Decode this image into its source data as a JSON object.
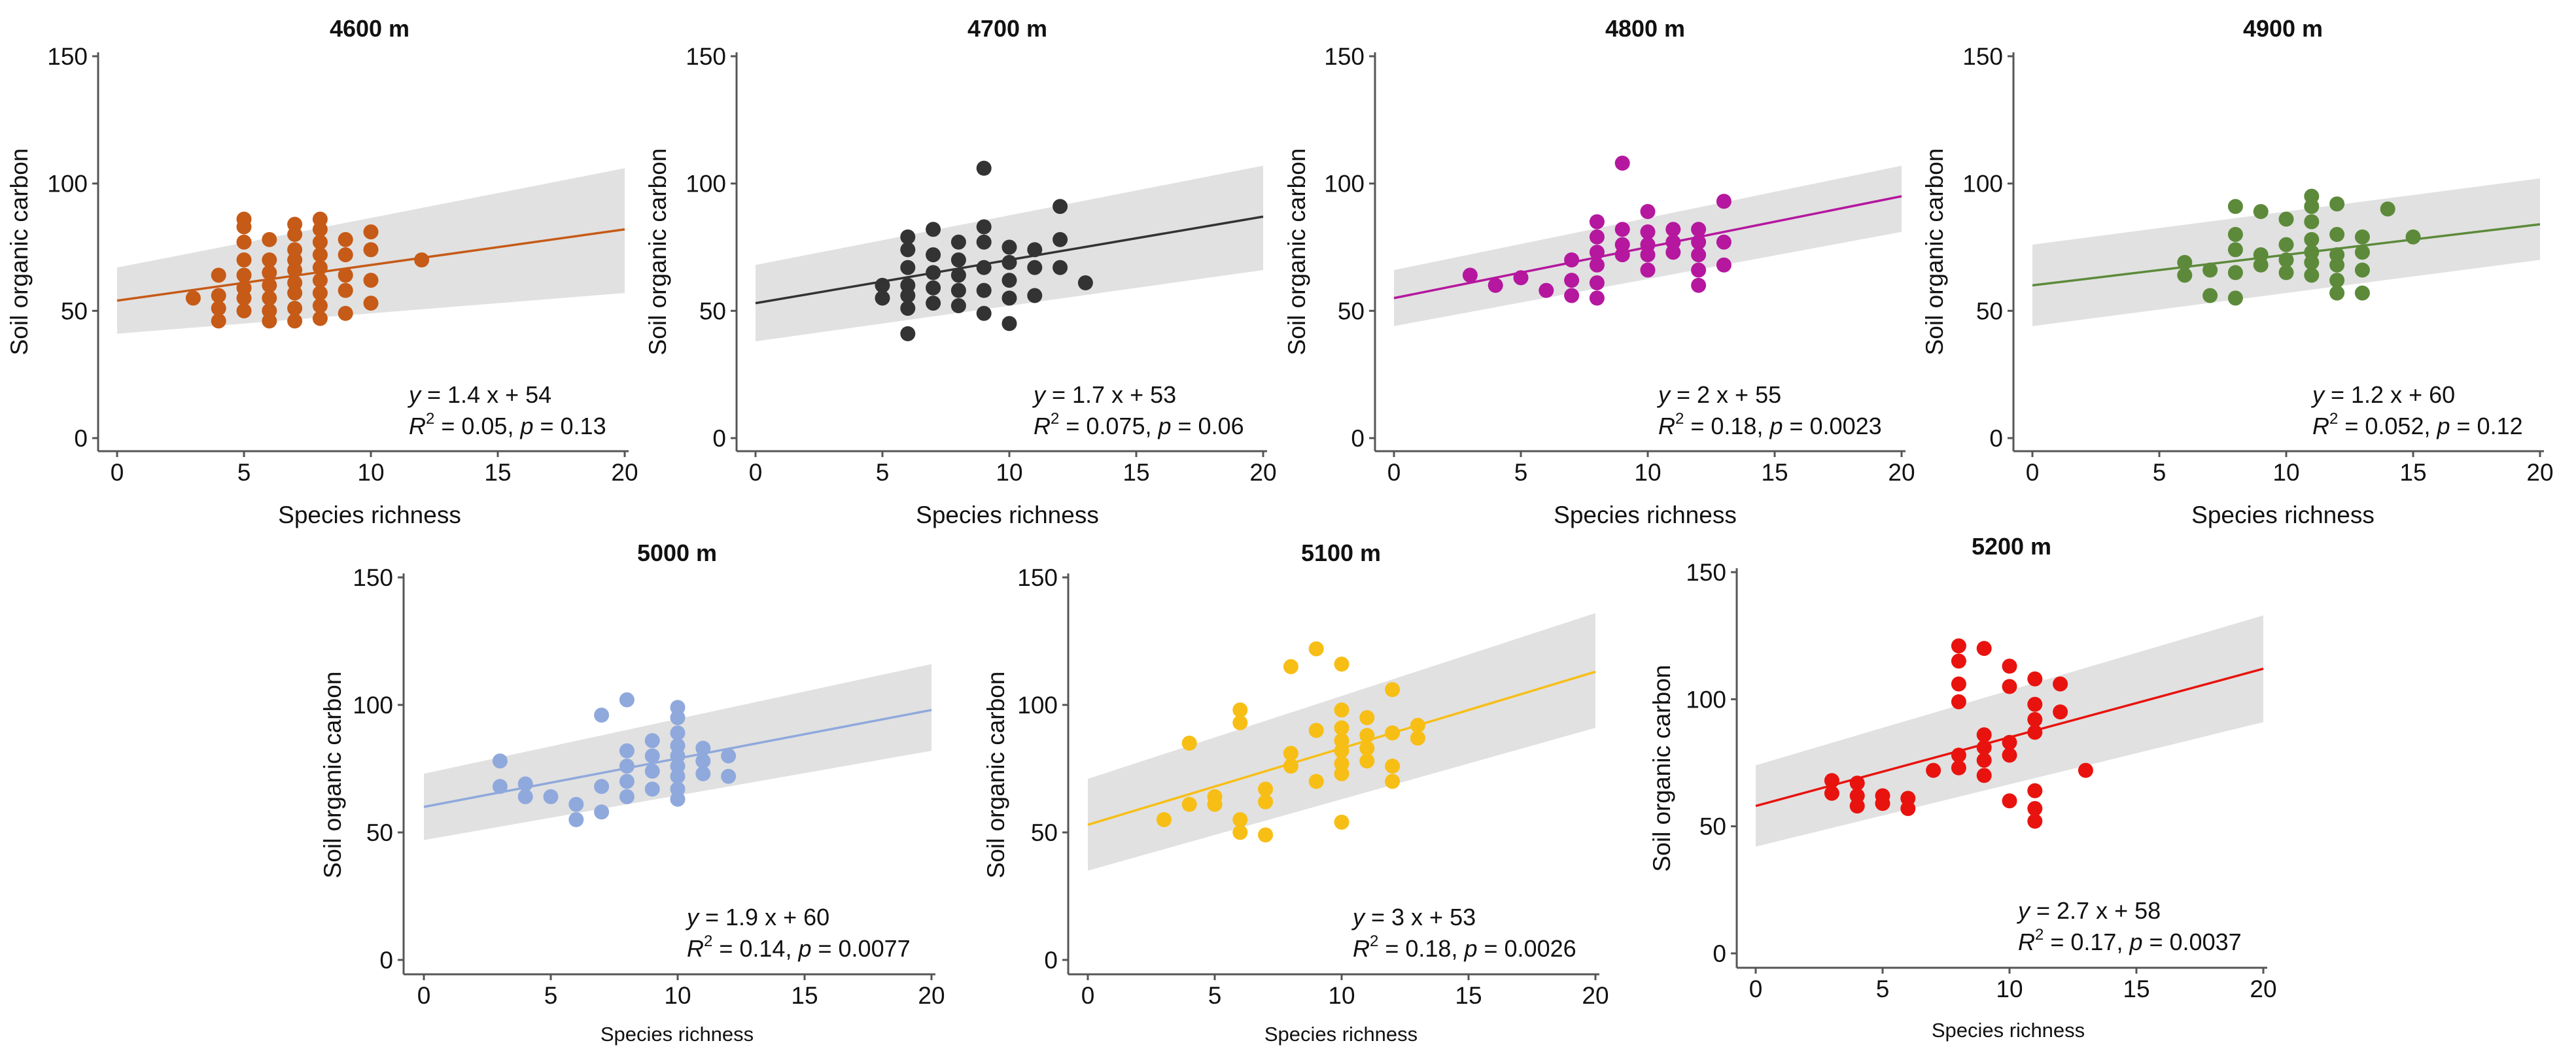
{
  "chart_data": [
    {
      "type": "scatter",
      "title": "4600 m",
      "xlabel": "Species richness",
      "ylabel": "Soil organic carbon",
      "xlim": [
        0,
        20
      ],
      "ylim": [
        0,
        150
      ],
      "xticks": [
        0,
        5,
        10,
        15,
        20
      ],
      "yticks": [
        0,
        50,
        100,
        150
      ],
      "color": "#C65A17",
      "fit": {
        "slope": 1.4,
        "intercept": 54,
        "ci_low_at_0": 41,
        "ci_high_at_0": 67,
        "ci_low_at_20": 57,
        "ci_high_at_20": 106
      },
      "equation": {
        "prefix": "y",
        "rhs": " = 1.4 x + 54",
        "r2_prefix": "R",
        "r2_sup": "2",
        "r2_rest": " = 0.05,  ",
        "p_label": "p",
        "p_rest": "  = 0.13"
      },
      "points": [
        [
          3,
          55
        ],
        [
          4,
          64
        ],
        [
          4,
          56
        ],
        [
          4,
          51
        ],
        [
          4,
          46
        ],
        [
          5,
          86
        ],
        [
          5,
          83
        ],
        [
          5,
          77
        ],
        [
          5,
          70
        ],
        [
          5,
          64
        ],
        [
          5,
          59
        ],
        [
          5,
          55
        ],
        [
          5,
          50
        ],
        [
          6,
          78
        ],
        [
          6,
          70
        ],
        [
          6,
          65
        ],
        [
          6,
          60
        ],
        [
          6,
          55
        ],
        [
          6,
          50
        ],
        [
          6,
          46
        ],
        [
          7,
          84
        ],
        [
          7,
          80
        ],
        [
          7,
          74
        ],
        [
          7,
          70
        ],
        [
          7,
          66
        ],
        [
          7,
          61
        ],
        [
          7,
          57
        ],
        [
          7,
          51
        ],
        [
          7,
          46
        ],
        [
          8,
          86
        ],
        [
          8,
          82
        ],
        [
          8,
          77
        ],
        [
          8,
          72
        ],
        [
          8,
          67
        ],
        [
          8,
          62
        ],
        [
          8,
          57
        ],
        [
          8,
          52
        ],
        [
          8,
          47
        ],
        [
          9,
          78
        ],
        [
          9,
          72
        ],
        [
          9,
          64
        ],
        [
          9,
          58
        ],
        [
          9,
          49
        ],
        [
          10,
          81
        ],
        [
          10,
          74
        ],
        [
          10,
          62
        ],
        [
          10,
          53
        ],
        [
          12,
          70
        ]
      ]
    },
    {
      "type": "scatter",
      "title": "4700 m",
      "xlabel": "Species richness",
      "ylabel": "Soil organic carbon",
      "xlim": [
        0,
        20
      ],
      "ylim": [
        0,
        150
      ],
      "xticks": [
        0,
        5,
        10,
        15,
        20
      ],
      "yticks": [
        0,
        50,
        100,
        150
      ],
      "color": "#333333",
      "fit": {
        "slope": 1.7,
        "intercept": 53,
        "ci_low_at_0": 38,
        "ci_high_at_0": 68,
        "ci_low_at_20": 66,
        "ci_high_at_20": 107
      },
      "equation": {
        "prefix": "y",
        "rhs": " = 1.7 x + 53",
        "r2_prefix": "R",
        "r2_sup": "2",
        "r2_rest": " = 0.075,  ",
        "p_label": "p",
        "p_rest": "  = 0.06"
      },
      "points": [
        [
          5,
          60
        ],
        [
          5,
          55
        ],
        [
          6,
          79
        ],
        [
          6,
          74
        ],
        [
          6,
          67
        ],
        [
          6,
          60
        ],
        [
          6,
          56
        ],
        [
          6,
          51
        ],
        [
          6,
          41
        ],
        [
          7,
          82
        ],
        [
          7,
          72
        ],
        [
          7,
          65
        ],
        [
          7,
          59
        ],
        [
          7,
          53
        ],
        [
          8,
          77
        ],
        [
          8,
          70
        ],
        [
          8,
          64
        ],
        [
          8,
          58
        ],
        [
          8,
          52
        ],
        [
          9,
          106
        ],
        [
          9,
          83
        ],
        [
          9,
          77
        ],
        [
          9,
          67
        ],
        [
          9,
          58
        ],
        [
          9,
          49
        ],
        [
          10,
          75
        ],
        [
          10,
          69
        ],
        [
          10,
          62
        ],
        [
          10,
          55
        ],
        [
          10,
          45
        ],
        [
          11,
          74
        ],
        [
          11,
          67
        ],
        [
          11,
          56
        ],
        [
          12,
          91
        ],
        [
          12,
          78
        ],
        [
          12,
          67
        ],
        [
          13,
          61
        ]
      ]
    },
    {
      "type": "scatter",
      "title": "4800 m",
      "xlabel": "Species richness",
      "ylabel": "Soil organic carbon",
      "xlim": [
        0,
        20
      ],
      "ylim": [
        0,
        150
      ],
      "xticks": [
        0,
        5,
        10,
        15,
        20
      ],
      "yticks": [
        0,
        50,
        100,
        150
      ],
      "color": "#B5179E",
      "fit": {
        "slope": 2,
        "intercept": 55,
        "ci_low_at_0": 44,
        "ci_high_at_0": 66,
        "ci_low_at_20": 81,
        "ci_high_at_20": 107
      },
      "equation": {
        "prefix": "y",
        "rhs": " = 2 x + 55",
        "r2_prefix": "R",
        "r2_sup": "2",
        "r2_rest": " = 0.18,  ",
        "p_label": "p",
        "p_rest": "  = 0.0023"
      },
      "points": [
        [
          3,
          64
        ],
        [
          4,
          60
        ],
        [
          5,
          63
        ],
        [
          6,
          58
        ],
        [
          7,
          70
        ],
        [
          7,
          62
        ],
        [
          7,
          56
        ],
        [
          8,
          85
        ],
        [
          8,
          79
        ],
        [
          8,
          73
        ],
        [
          8,
          68
        ],
        [
          8,
          61
        ],
        [
          8,
          55
        ],
        [
          9,
          108
        ],
        [
          9,
          82
        ],
        [
          9,
          76
        ],
        [
          9,
          72
        ],
        [
          10,
          89
        ],
        [
          10,
          81
        ],
        [
          10,
          76
        ],
        [
          10,
          72
        ],
        [
          10,
          66
        ],
        [
          11,
          82
        ],
        [
          11,
          77
        ],
        [
          11,
          73
        ],
        [
          12,
          82
        ],
        [
          12,
          77
        ],
        [
          12,
          72
        ],
        [
          12,
          66
        ],
        [
          12,
          60
        ],
        [
          13,
          93
        ],
        [
          13,
          77
        ],
        [
          13,
          68
        ]
      ]
    },
    {
      "type": "scatter",
      "title": "4900 m",
      "xlabel": "Species richness",
      "ylabel": "Soil organic carbon",
      "xlim": [
        0,
        20
      ],
      "ylim": [
        0,
        150
      ],
      "xticks": [
        0,
        5,
        10,
        15,
        20
      ],
      "yticks": [
        0,
        50,
        100,
        150
      ],
      "color": "#5C8A3A",
      "fit": {
        "slope": 1.2,
        "intercept": 60,
        "ci_low_at_0": 44,
        "ci_high_at_0": 76,
        "ci_low_at_20": 70,
        "ci_high_at_20": 102
      },
      "equation": {
        "prefix": "y",
        "rhs": " = 1.2 x + 60",
        "r2_prefix": "R",
        "r2_sup": "2",
        "r2_rest": " = 0.052,  ",
        "p_label": "p",
        "p_rest": "  = 0.12"
      },
      "points": [
        [
          6,
          69
        ],
        [
          6,
          64
        ],
        [
          7,
          66
        ],
        [
          7,
          56
        ],
        [
          8,
          91
        ],
        [
          8,
          80
        ],
        [
          8,
          74
        ],
        [
          8,
          65
        ],
        [
          8,
          55
        ],
        [
          9,
          89
        ],
        [
          9,
          72
        ],
        [
          9,
          68
        ],
        [
          10,
          86
        ],
        [
          10,
          76
        ],
        [
          10,
          70
        ],
        [
          10,
          65
        ],
        [
          11,
          95
        ],
        [
          11,
          91
        ],
        [
          11,
          85
        ],
        [
          11,
          78
        ],
        [
          11,
          73
        ],
        [
          11,
          69
        ],
        [
          11,
          64
        ],
        [
          12,
          92
        ],
        [
          12,
          80
        ],
        [
          12,
          72
        ],
        [
          12,
          68
        ],
        [
          12,
          62
        ],
        [
          12,
          57
        ],
        [
          13,
          79
        ],
        [
          13,
          73
        ],
        [
          13,
          66
        ],
        [
          13,
          57
        ],
        [
          14,
          90
        ],
        [
          15,
          79
        ]
      ]
    },
    {
      "type": "scatter",
      "title": "5000 m",
      "xlabel": "Species richness",
      "ylabel": "Soil organic carbon",
      "xlim": [
        0,
        20
      ],
      "ylim": [
        0,
        150
      ],
      "xticks": [
        0,
        5,
        10,
        15,
        20
      ],
      "yticks": [
        0,
        50,
        100,
        150
      ],
      "color": "#8FA9DC",
      "fit": {
        "slope": 1.9,
        "intercept": 60,
        "ci_low_at_0": 47,
        "ci_high_at_0": 73,
        "ci_low_at_20": 82,
        "ci_high_at_20": 116
      },
      "equation": {
        "prefix": "y",
        "rhs": " = 1.9 x + 60",
        "r2_prefix": "R",
        "r2_sup": "2",
        "r2_rest": " = 0.14,  ",
        "p_label": "p",
        "p_rest": "  = 0.0077"
      },
      "points": [
        [
          3,
          78
        ],
        [
          3,
          68
        ],
        [
          4,
          69
        ],
        [
          4,
          64
        ],
        [
          5,
          64
        ],
        [
          6,
          61
        ],
        [
          6,
          55
        ],
        [
          7,
          96
        ],
        [
          7,
          68
        ],
        [
          7,
          58
        ],
        [
          8,
          102
        ],
        [
          8,
          82
        ],
        [
          8,
          76
        ],
        [
          8,
          70
        ],
        [
          8,
          64
        ],
        [
          9,
          86
        ],
        [
          9,
          80
        ],
        [
          9,
          74
        ],
        [
          9,
          67
        ],
        [
          10,
          99
        ],
        [
          10,
          95
        ],
        [
          10,
          89
        ],
        [
          10,
          84
        ],
        [
          10,
          80
        ],
        [
          10,
          76
        ],
        [
          10,
          72
        ],
        [
          10,
          67
        ],
        [
          10,
          63
        ],
        [
          11,
          83
        ],
        [
          11,
          78
        ],
        [
          11,
          73
        ],
        [
          12,
          80
        ],
        [
          12,
          72
        ]
      ]
    },
    {
      "type": "scatter",
      "title": "5100 m",
      "xlabel": "Species richness",
      "ylabel": "Soil organic carbon",
      "xlim": [
        0,
        20
      ],
      "ylim": [
        0,
        150
      ],
      "xticks": [
        0,
        5,
        10,
        15,
        20
      ],
      "yticks": [
        0,
        50,
        100,
        150
      ],
      "color": "#F7BE16",
      "fit": {
        "slope": 3,
        "intercept": 53,
        "ci_low_at_0": 35,
        "ci_high_at_0": 71,
        "ci_low_at_20": 91,
        "ci_high_at_20": 136
      },
      "equation": {
        "prefix": "y",
        "rhs": " = 3 x + 53",
        "r2_prefix": "R",
        "r2_sup": "2",
        "r2_rest": " = 0.18,  ",
        "p_label": "p",
        "p_rest": "  = 0.0026"
      },
      "points": [
        [
          3,
          55
        ],
        [
          4,
          85
        ],
        [
          4,
          61
        ],
        [
          5,
          64
        ],
        [
          5,
          61
        ],
        [
          6,
          98
        ],
        [
          6,
          93
        ],
        [
          6,
          55
        ],
        [
          6,
          50
        ],
        [
          7,
          67
        ],
        [
          7,
          62
        ],
        [
          7,
          49
        ],
        [
          8,
          115
        ],
        [
          8,
          81
        ],
        [
          8,
          76
        ],
        [
          9,
          122
        ],
        [
          9,
          90
        ],
        [
          9,
          70
        ],
        [
          10,
          116
        ],
        [
          10,
          98
        ],
        [
          10,
          91
        ],
        [
          10,
          86
        ],
        [
          10,
          82
        ],
        [
          10,
          77
        ],
        [
          10,
          73
        ],
        [
          10,
          54
        ],
        [
          11,
          95
        ],
        [
          11,
          88
        ],
        [
          11,
          83
        ],
        [
          11,
          78
        ],
        [
          12,
          106
        ],
        [
          12,
          89
        ],
        [
          12,
          76
        ],
        [
          12,
          70
        ],
        [
          13,
          92
        ],
        [
          13,
          87
        ]
      ]
    },
    {
      "type": "scatter",
      "title": "5200 m",
      "xlabel": "Species richness",
      "ylabel": "Soil organic carbon",
      "xlim": [
        0,
        20
      ],
      "ylim": [
        0,
        150
      ],
      "xticks": [
        0,
        5,
        10,
        15,
        20
      ],
      "yticks": [
        0,
        50,
        100,
        150
      ],
      "color": "#E8130E",
      "fit": {
        "slope": 2.7,
        "intercept": 58,
        "ci_low_at_0": 42,
        "ci_high_at_0": 74,
        "ci_low_at_20": 91,
        "ci_high_at_20": 133
      },
      "equation": {
        "prefix": "y",
        "rhs": " = 2.7 x + 58",
        "r2_prefix": "R",
        "r2_sup": "2",
        "r2_rest": " = 0.17,  ",
        "p_label": "p",
        "p_rest": "  = 0.0037"
      },
      "points": [
        [
          3,
          68
        ],
        [
          3,
          63
        ],
        [
          4,
          67
        ],
        [
          4,
          62
        ],
        [
          4,
          58
        ],
        [
          5,
          62
        ],
        [
          5,
          59
        ],
        [
          6,
          61
        ],
        [
          6,
          57
        ],
        [
          7,
          72
        ],
        [
          8,
          121
        ],
        [
          8,
          115
        ],
        [
          8,
          106
        ],
        [
          8,
          99
        ],
        [
          8,
          78
        ],
        [
          8,
          73
        ],
        [
          9,
          120
        ],
        [
          9,
          86
        ],
        [
          9,
          81
        ],
        [
          9,
          76
        ],
        [
          9,
          70
        ],
        [
          10,
          113
        ],
        [
          10,
          105
        ],
        [
          10,
          83
        ],
        [
          10,
          78
        ],
        [
          10,
          60
        ],
        [
          11,
          108
        ],
        [
          11,
          98
        ],
        [
          11,
          92
        ],
        [
          11,
          87
        ],
        [
          11,
          64
        ],
        [
          11,
          57
        ],
        [
          11,
          52
        ],
        [
          12,
          106
        ],
        [
          12,
          95
        ],
        [
          13,
          72
        ]
      ]
    }
  ]
}
